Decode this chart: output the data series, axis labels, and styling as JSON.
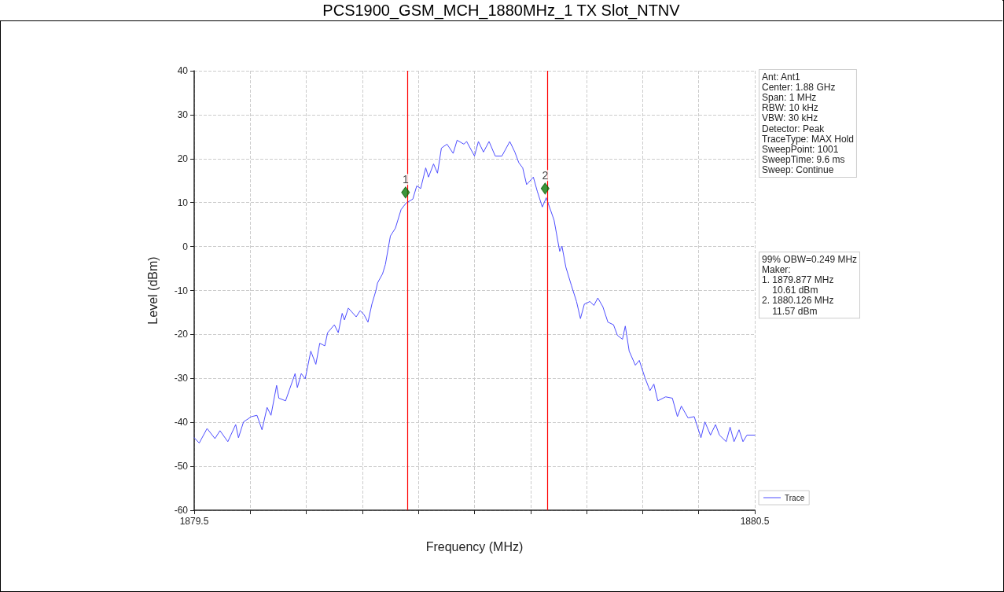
{
  "chart_data": {
    "type": "line",
    "title": "PCS1900_GSM_MCH_1880MHz_1 TX Slot_NTNV",
    "xlabel": "Frequency (MHz)",
    "ylabel": "Level (dBm)",
    "x": [
      1879.5,
      1879.509,
      1879.523,
      1879.537,
      1879.546,
      1879.56,
      1879.574,
      1879.579,
      1879.588,
      1879.602,
      1879.612,
      1879.621,
      1879.63,
      1879.637,
      1879.647,
      1879.651,
      1879.663,
      1879.68,
      1879.684,
      1879.691,
      1879.698,
      1879.708,
      1879.717,
      1879.724,
      1879.733,
      1879.738,
      1879.75,
      1879.757,
      1879.764,
      1879.768,
      1879.775,
      1879.789,
      1879.796,
      1879.803,
      1879.81,
      1879.817,
      1879.824,
      1879.827,
      1879.836,
      1879.841,
      1879.85,
      1879.859,
      1879.869,
      1879.878,
      1879.89,
      1879.897,
      1879.904,
      1879.913,
      1879.918,
      1879.927,
      1879.934,
      1879.941,
      1879.951,
      1879.962,
      1879.969,
      1879.981,
      1879.986,
      1880.0,
      1880.007,
      1880.016,
      1880.026,
      1880.037,
      1880.049,
      1880.063,
      1880.072,
      1880.079,
      1880.086,
      1880.093,
      1880.105,
      1880.112,
      1880.121,
      1880.128,
      1880.142,
      1880.152,
      1880.156,
      1880.163,
      1880.173,
      1880.182,
      1880.189,
      1880.196,
      1880.206,
      1880.213,
      1880.22,
      1880.229,
      1880.238,
      1880.248,
      1880.255,
      1880.264,
      1880.269,
      1880.276,
      1880.287,
      1880.294,
      1880.304,
      1880.313,
      1880.32,
      1880.327,
      1880.341,
      1880.353,
      1880.362,
      1880.369,
      1880.381,
      1880.392,
      1880.404,
      1880.411,
      1880.421,
      1880.43,
      1880.437,
      1880.449,
      1880.456,
      1880.463,
      1880.472,
      1880.479,
      1880.486,
      1880.5
    ],
    "series": [
      {
        "name": "Trace",
        "color": "#4d4dff",
        "values": [
          -43.5,
          -44.7,
          -41.4,
          -43.7,
          -41.9,
          -44.4,
          -40.5,
          -43.5,
          -39.9,
          -38.7,
          -38.4,
          -41.7,
          -36.6,
          -38.4,
          -31.6,
          -34.5,
          -35.1,
          -28.9,
          -32.1,
          -28.9,
          -30.1,
          -23.8,
          -26.8,
          -22.0,
          -22.6,
          -19.6,
          -17.8,
          -19.6,
          -15.2,
          -16.7,
          -14.0,
          -16.0,
          -14.6,
          -15.5,
          -17.2,
          -13.1,
          -10.1,
          -8.3,
          -6.2,
          -4.1,
          2.4,
          4.2,
          8.4,
          9.9,
          10.8,
          13.8,
          13.2,
          17.9,
          15.8,
          18.8,
          16.7,
          22.4,
          23.3,
          21.2,
          24.2,
          23.3,
          23.9,
          20.6,
          23.9,
          21.5,
          23.9,
          20.6,
          20.6,
          23.9,
          21.5,
          19.1,
          17.9,
          14.1,
          15.8,
          12.6,
          9.0,
          11.1,
          6.0,
          -1.1,
          0.1,
          -4.7,
          -8.9,
          -12.5,
          -16.4,
          -13.1,
          -12.5,
          -13.4,
          -11.7,
          -13.7,
          -17.2,
          -17.8,
          -20.2,
          -21.1,
          -18.1,
          -23.8,
          -27.0,
          -25.9,
          -29.8,
          -32.8,
          -31.3,
          -35.1,
          -34.2,
          -34.5,
          -38.7,
          -36.3,
          -39.0,
          -38.7,
          -43.5,
          -39.9,
          -42.9,
          -40.5,
          -42.9,
          -44.4,
          -41.1,
          -44.4,
          -41.7,
          -44.4,
          -42.9,
          -42.9
        ]
      }
    ],
    "xlim": [
      1879.5,
      1880.5
    ],
    "xticks": [
      1879.5,
      {
        "value": 1879.6,
        "label": null
      },
      {
        "value": 1879.7,
        "label": null
      },
      {
        "value": 1879.8,
        "label": null
      },
      {
        "value": 1879.9,
        "label": null
      },
      {
        "value": 1880.0,
        "label": null
      },
      {
        "value": 1880.1,
        "label": null
      },
      {
        "value": 1880.2,
        "label": null
      },
      {
        "value": 1880.3,
        "label": null
      },
      {
        "value": 1880.4,
        "label": null
      },
      1880.5
    ],
    "ylim": [
      -60,
      40
    ],
    "yticks": [
      -60,
      -50,
      -40,
      -30,
      -20,
      -10,
      0,
      10,
      20,
      30,
      40
    ],
    "ref_lines": [
      {
        "axis": "x",
        "value": 1879.877,
        "color": "#ff0000"
      },
      {
        "axis": "x",
        "value": 1880.126,
        "color": "#ff0000"
      }
    ],
    "annotations": [
      {
        "text": "1",
        "x": 1879.877,
        "y": 12.3
      },
      {
        "text": "2",
        "x": 1880.126,
        "y": 13.2
      },
      "Ant: Ant1\nCenter: 1.88 GHz\nSpan: 1 MHz\nRBW: 10 kHz\nVBW: 30 kHz\nDetector: Peak\nTraceType: MAX Hold\nSweepPoint: 1001\nSweepTime: 9.6 ms\nSweep: Continue",
      "99% OBW=0.249 MHz\nMaker:\n1. 1879.877 MHz\n    10.61 dBm\n2. 1880.126 MHz\n    11.57 dBm"
    ],
    "grid": true,
    "legend": "bottom right",
    "marker": "none",
    "line_style": "solid"
  }
}
